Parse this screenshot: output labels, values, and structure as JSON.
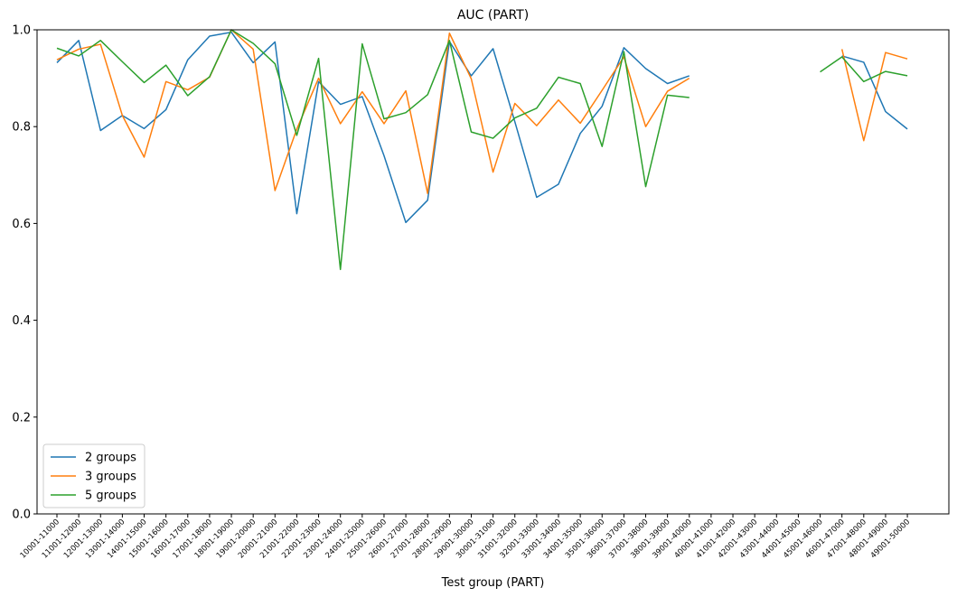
{
  "chart_data": {
    "type": "line",
    "title": "AUC (PART)",
    "xlabel": "Test group (PART)",
    "ylabel": "",
    "ylim": [
      0,
      1
    ],
    "yticks": [
      0.0,
      0.2,
      0.4,
      0.6,
      0.8,
      1.0
    ],
    "ytick_labels": [
      "0.0",
      "0.2",
      "0.4",
      "0.6",
      "0.8",
      "1.0"
    ],
    "grid": false,
    "legend_position": "lower-left",
    "categories": [
      "10001-11000",
      "11001-12000",
      "12001-13000",
      "13001-14000",
      "14001-15000",
      "15001-16000",
      "16001-17000",
      "17001-18000",
      "18001-19000",
      "19001-20000",
      "20001-21000",
      "21001-22000",
      "22001-23000",
      "23001-24000",
      "24001-25000",
      "25001-26000",
      "26001-27000",
      "27001-28000",
      "28001-29000",
      "29001-30000",
      "30001-31000",
      "31001-32000",
      "32001-33000",
      "33001-34000",
      "34001-35000",
      "35001-36000",
      "36001-37000",
      "37001-38000",
      "38001-39000",
      "39001-40000",
      "40001-41000",
      "41001-42000",
      "42001-43000",
      "43001-44000",
      "44001-45000",
      "45001-46000",
      "46001-47000",
      "47001-48000",
      "48001-49000",
      "49001-50000"
    ],
    "series": [
      {
        "name": "2 groups",
        "color": "#1f77b4",
        "values": [
          0.932,
          0.978,
          0.792,
          0.823,
          0.796,
          0.835,
          0.938,
          0.987,
          0.995,
          0.932,
          0.975,
          0.62,
          0.893,
          0.846,
          0.862,
          0.74,
          0.602,
          0.648,
          0.976,
          0.905,
          0.961,
          0.81,
          0.654,
          0.681,
          0.786,
          0.842,
          0.963,
          0.92,
          0.889,
          0.905,
          null,
          null,
          null,
          null,
          null,
          null,
          0.946,
          0.933,
          0.831,
          0.795
        ]
      },
      {
        "name": "3 groups",
        "color": "#ff7f0e",
        "values": [
          0.938,
          0.96,
          0.97,
          0.823,
          0.737,
          0.893,
          0.876,
          0.902,
          1.0,
          0.96,
          0.668,
          0.795,
          0.9,
          0.806,
          0.872,
          0.806,
          0.874,
          0.662,
          0.993,
          0.899,
          0.706,
          0.848,
          0.802,
          0.855,
          0.807,
          0.875,
          0.944,
          0.8,
          0.873,
          0.9,
          null,
          null,
          null,
          null,
          null,
          null,
          0.96,
          0.771,
          0.953,
          0.94
        ]
      },
      {
        "name": "5 groups",
        "color": "#2ca02c",
        "values": [
          0.962,
          0.946,
          0.978,
          0.934,
          0.891,
          0.927,
          0.864,
          0.903,
          1.0,
          0.972,
          0.93,
          0.782,
          0.941,
          0.505,
          0.971,
          0.816,
          0.829,
          0.866,
          0.978,
          0.789,
          0.776,
          0.818,
          0.838,
          0.902,
          0.889,
          0.759,
          0.955,
          0.676,
          0.865,
          0.86,
          null,
          null,
          null,
          null,
          null,
          0.913,
          0.944,
          0.893,
          0.914,
          0.905
        ]
      }
    ]
  }
}
